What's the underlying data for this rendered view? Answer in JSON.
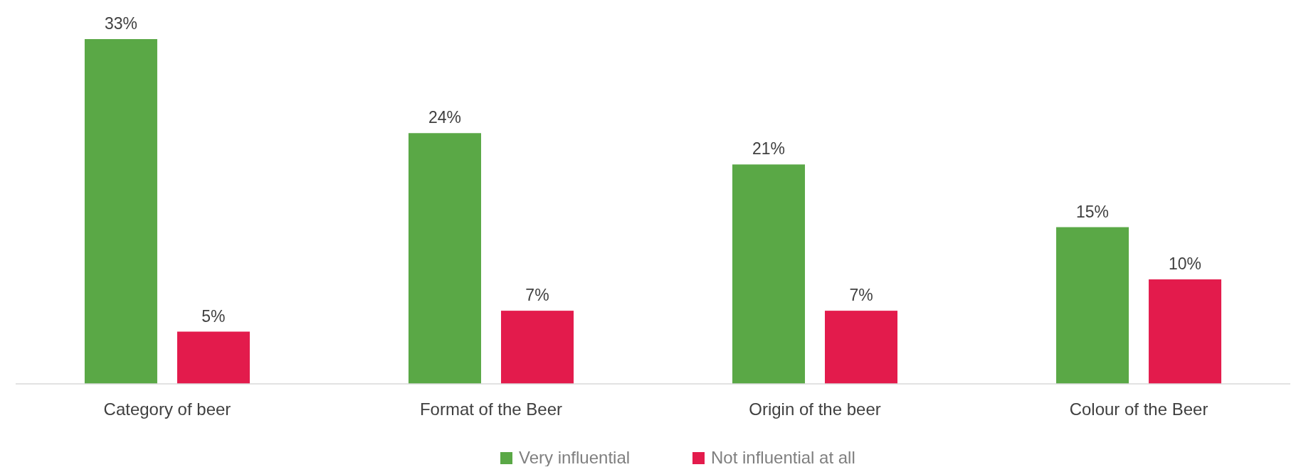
{
  "chart_data": {
    "type": "bar",
    "categories": [
      "Category of beer",
      "Format of the Beer",
      "Origin of the beer",
      "Colour of the Beer"
    ],
    "series": [
      {
        "name": "Very influential",
        "color": "#5aa846",
        "values": [
          33,
          24,
          21,
          15
        ],
        "value_labels": [
          "33%",
          "24%",
          "21%",
          "15%"
        ]
      },
      {
        "name": "Not influential at all",
        "color": "#e31b4c",
        "values": [
          5,
          7,
          7,
          10
        ],
        "value_labels": [
          "5%",
          "7%",
          "7%",
          "10%"
        ]
      }
    ],
    "legend": "bottom"
  }
}
